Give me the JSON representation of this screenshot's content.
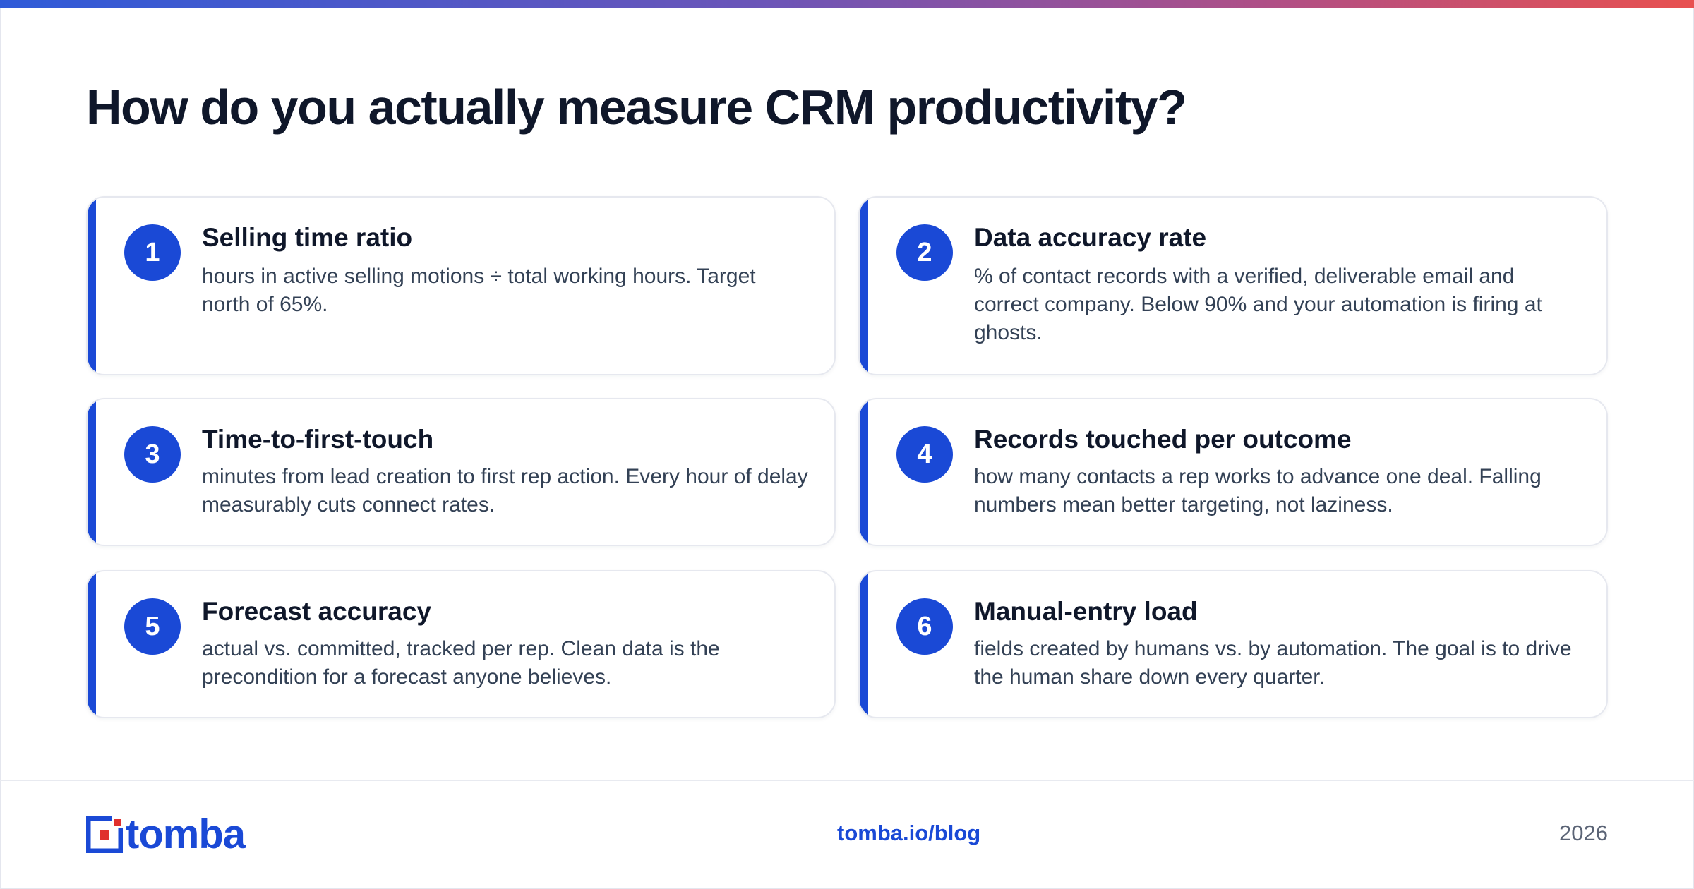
{
  "header": {
    "title": "How do you actually measure CRM productivity?"
  },
  "metrics": [
    {
      "number": "1",
      "title": "Selling time ratio",
      "text": "hours in active selling motions ÷ total working hours. Target north of 65%."
    },
    {
      "number": "2",
      "title": "Data accuracy rate",
      "text": "% of contact records with a verified, deliverable email and correct company. Below 90% and your automation is firing at ghosts."
    },
    {
      "number": "3",
      "title": "Time-to-first-touch",
      "text": "minutes from lead creation to first rep action. Every hour of delay measurably cuts connect rates."
    },
    {
      "number": "4",
      "title": "Records touched per outcome",
      "text": "how many contacts a rep works to advance one deal. Falling numbers mean better targeting, not laziness."
    },
    {
      "number": "5",
      "title": "Forecast accuracy",
      "text": "actual vs. committed, tracked per rep. Clean data is the precondition for a forecast anyone believes."
    },
    {
      "number": "6",
      "title": "Manual-entry load",
      "text": "fields created by humans vs. by automation. The goal is to drive the human share down every quarter."
    }
  ],
  "footer": {
    "logo_text": "tomba",
    "link": "tomba.io/blog",
    "year": "2026"
  },
  "colors": {
    "accent": "#1a49d6",
    "logo_red": "#e0302e",
    "title": "#0f172a",
    "body_text": "#334155"
  }
}
